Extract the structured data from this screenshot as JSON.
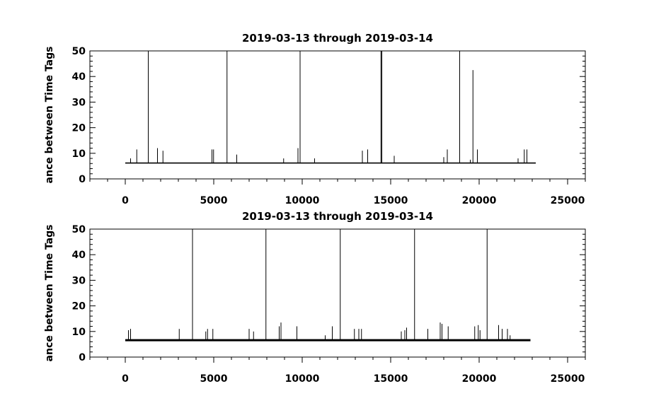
{
  "chart_data": [
    {
      "type": "line",
      "title": "2019-03-13 through 2019-03-14",
      "ylabel": "ance between Time Tags",
      "xlabel": "",
      "xlim": [
        -2000,
        26000
      ],
      "ylim": [
        0,
        50
      ],
      "x_ticks": [
        "0",
        "5000",
        "10000",
        "15000",
        "20000",
        "25000"
      ],
      "y_ticks": [
        "0",
        "10",
        "20",
        "30",
        "40",
        "50"
      ],
      "grid": false,
      "legend": "none",
      "color": "#000000",
      "series": [
        {
          "baseline": 6.2,
          "x_range": [
            0,
            23200
          ],
          "spikes": [
            {
              "x": 300,
              "y": 8
            },
            {
              "x": 650,
              "y": 11.5
            },
            {
              "x": 1300,
              "y": 50
            },
            {
              "x": 1820,
              "y": 12
            },
            {
              "x": 2130,
              "y": 11
            },
            {
              "x": 4900,
              "y": 11.5
            },
            {
              "x": 4990,
              "y": 11.5
            },
            {
              "x": 5750,
              "y": 50
            },
            {
              "x": 6300,
              "y": 9.5
            },
            {
              "x": 8950,
              "y": 8
            },
            {
              "x": 9760,
              "y": 12
            },
            {
              "x": 9880,
              "y": 50
            },
            {
              "x": 10700,
              "y": 8
            },
            {
              "x": 13400,
              "y": 11
            },
            {
              "x": 13700,
              "y": 11.5
            },
            {
              "x": 14450,
              "y": 50
            },
            {
              "x": 14500,
              "y": 50
            },
            {
              "x": 15200,
              "y": 9
            },
            {
              "x": 18000,
              "y": 8.5
            },
            {
              "x": 18200,
              "y": 11.5
            },
            {
              "x": 18900,
              "y": 50
            },
            {
              "x": 19500,
              "y": 7.5
            },
            {
              "x": 19650,
              "y": 42.5
            },
            {
              "x": 19900,
              "y": 11.5
            },
            {
              "x": 22200,
              "y": 8
            },
            {
              "x": 22550,
              "y": 11.5
            },
            {
              "x": 22700,
              "y": 11.5
            }
          ]
        }
      ]
    },
    {
      "type": "line",
      "title": "2019-03-13 through 2019-03-14",
      "ylabel": "ance between Time Tags",
      "xlabel": "",
      "xlim": [
        -2000,
        26000
      ],
      "ylim": [
        0,
        50
      ],
      "x_ticks": [
        "0",
        "5000",
        "10000",
        "15000",
        "20000",
        "25000"
      ],
      "y_ticks": [
        "0",
        "10",
        "20",
        "30",
        "40",
        "50"
      ],
      "grid": false,
      "legend": "none",
      "color": "#000000",
      "series": [
        {
          "baseline": 6.6,
          "x_range": [
            0,
            22900
          ],
          "spikes": [
            {
              "x": 180,
              "y": 10.5
            },
            {
              "x": 300,
              "y": 11
            },
            {
              "x": 3050,
              "y": 11
            },
            {
              "x": 3800,
              "y": 50
            },
            {
              "x": 4550,
              "y": 10
            },
            {
              "x": 4650,
              "y": 11
            },
            {
              "x": 4950,
              "y": 11
            },
            {
              "x": 7000,
              "y": 11
            },
            {
              "x": 7250,
              "y": 10
            },
            {
              "x": 7950,
              "y": 50
            },
            {
              "x": 8700,
              "y": 12
            },
            {
              "x": 8800,
              "y": 13.5
            },
            {
              "x": 9700,
              "y": 12
            },
            {
              "x": 11300,
              "y": 8.5
            },
            {
              "x": 11700,
              "y": 12
            },
            {
              "x": 12150,
              "y": 50
            },
            {
              "x": 12950,
              "y": 11
            },
            {
              "x": 13200,
              "y": 11
            },
            {
              "x": 13350,
              "y": 11
            },
            {
              "x": 15600,
              "y": 10
            },
            {
              "x": 15800,
              "y": 10.5
            },
            {
              "x": 15900,
              "y": 11.5
            },
            {
              "x": 16350,
              "y": 50
            },
            {
              "x": 17100,
              "y": 11
            },
            {
              "x": 17800,
              "y": 13.5
            },
            {
              "x": 17900,
              "y": 13
            },
            {
              "x": 18250,
              "y": 12
            },
            {
              "x": 19750,
              "y": 12
            },
            {
              "x": 19950,
              "y": 12.5
            },
            {
              "x": 20050,
              "y": 10.5
            },
            {
              "x": 20450,
              "y": 50
            },
            {
              "x": 21100,
              "y": 12.5
            },
            {
              "x": 21300,
              "y": 11
            },
            {
              "x": 21600,
              "y": 11
            },
            {
              "x": 21750,
              "y": 8.5
            }
          ]
        }
      ]
    }
  ]
}
